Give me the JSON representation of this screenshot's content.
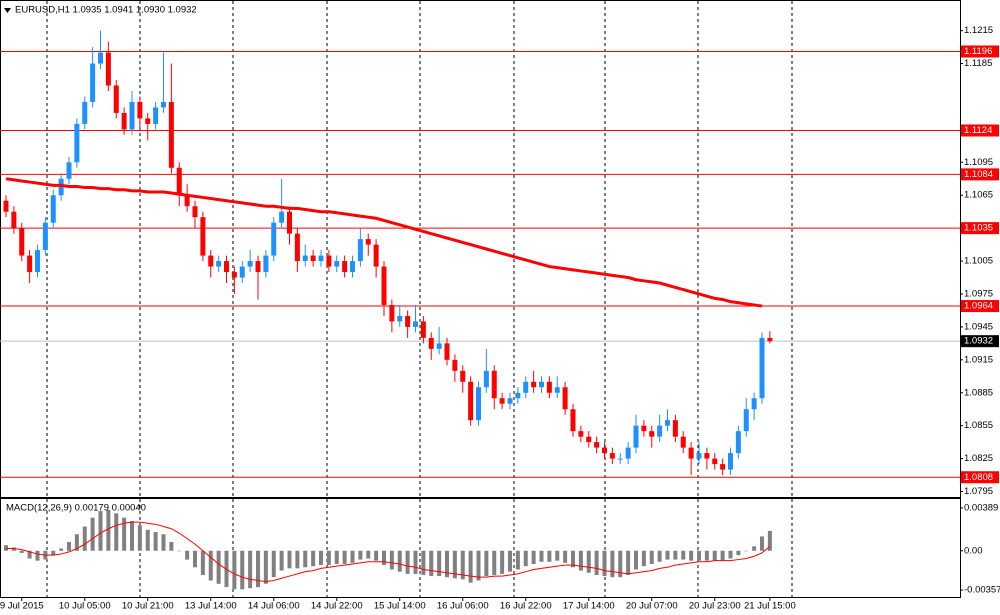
{
  "chart_data": [
    {
      "type": "candlestick",
      "title": "EURUSD,H1  1.0935 1.0941 1.0930 1.0932",
      "categories": [
        null,
        null,
        "9 Jul 2015",
        null,
        null,
        null,
        null,
        null,
        null,
        null,
        "10 Jul 05:00",
        null,
        null,
        null,
        null,
        null,
        null,
        null,
        "10 Jul 21:00",
        null,
        null,
        null,
        null,
        null,
        null,
        null,
        "13 Jul 14:00",
        null,
        null,
        null,
        null,
        null,
        null,
        null,
        "14 Jul 06:00",
        null,
        null,
        null,
        null,
        null,
        null,
        null,
        "14 Jul 22:00",
        null,
        null,
        null,
        null,
        null,
        null,
        null,
        "15 Jul 14:00",
        null,
        null,
        null,
        null,
        null,
        null,
        null,
        "16 Jul 06:00",
        null,
        null,
        null,
        null,
        null,
        null,
        null,
        "16 Jul 22:00",
        null,
        null,
        null,
        null,
        null,
        null,
        null,
        "17 Jul 14:00",
        null,
        null,
        null,
        null,
        null,
        null,
        null,
        "20 Jul 07:00",
        null,
        null,
        null,
        null,
        null,
        null,
        null,
        "20 Jul 23:00",
        null,
        null,
        null,
        null,
        null,
        null,
        "21 Jul 15:00"
      ],
      "open": [
        1.106,
        1.105,
        1.1035,
        1.101,
        1.0995,
        1.1015,
        1.104,
        1.1065,
        1.108,
        1.1095,
        1.113,
        1.115,
        1.1185,
        1.1195,
        1.1165,
        1.114,
        1.1125,
        1.115,
        1.1135,
        1.113,
        1.1145,
        1.115,
        1.109,
        1.1065,
        1.1055,
        1.1045,
        1.101,
        1.1,
        1.1005,
        1.0995,
        1.099,
        1.1,
        1.1005,
        1.0995,
        1.101,
        1.104,
        1.105,
        1.103,
        1.1005,
        1.101,
        1.1005,
        1.101,
        1.1,
        1.1005,
        1.0995,
        1.1005,
        1.1025,
        1.102,
        1.1,
        1.0965,
        1.095,
        1.0955,
        1.0945,
        1.095,
        1.0935,
        1.0925,
        1.093,
        1.0915,
        1.0905,
        1.0895,
        1.086,
        1.089,
        1.0905,
        1.088,
        1.0875,
        1.088,
        1.0885,
        1.0895,
        1.089,
        1.0895,
        1.0885,
        1.089,
        1.087,
        1.085,
        1.0845,
        1.084,
        1.0835,
        1.083,
        1.0825,
        1.0825,
        1.0835,
        1.0855,
        1.085,
        1.0845,
        1.0855,
        1.086,
        1.0845,
        1.0835,
        1.0825,
        1.083,
        1.0825,
        1.082,
        1.0815,
        1.083,
        1.085,
        1.087,
        1.088,
        1.0935
      ],
      "high": [
        1.1065,
        1.1055,
        1.104,
        1.1015,
        1.102,
        1.1045,
        1.107,
        1.1085,
        1.11,
        1.1135,
        1.1155,
        1.12,
        1.1215,
        1.1205,
        1.117,
        1.1145,
        1.116,
        1.1155,
        1.114,
        1.115,
        1.1195,
        1.1185,
        1.1095,
        1.1075,
        1.106,
        1.105,
        1.1015,
        1.101,
        1.101,
        1.1,
        1.1005,
        1.1015,
        1.101,
        1.1015,
        1.1045,
        1.108,
        1.1055,
        1.1035,
        1.102,
        1.1015,
        1.1015,
        1.1015,
        1.101,
        1.101,
        1.101,
        1.1035,
        1.103,
        1.1025,
        1.1005,
        1.097,
        1.0965,
        1.096,
        1.0965,
        1.0955,
        1.094,
        1.0945,
        1.0935,
        1.092,
        1.091,
        1.09,
        1.0895,
        1.0925,
        1.091,
        1.0885,
        1.0885,
        1.089,
        1.09,
        1.0905,
        1.09,
        1.09,
        1.09,
        1.0895,
        1.0875,
        1.0855,
        1.085,
        1.0845,
        1.084,
        1.0835,
        1.083,
        1.084,
        1.0865,
        1.086,
        1.0855,
        1.0865,
        1.087,
        1.0865,
        1.085,
        1.084,
        1.084,
        1.0835,
        1.083,
        1.0825,
        1.0835,
        1.0855,
        1.088,
        1.0885,
        1.094,
        1.0941
      ],
      "low": [
        1.1045,
        1.103,
        1.1005,
        1.0985,
        1.099,
        1.101,
        1.1035,
        1.106,
        1.1075,
        1.109,
        1.1125,
        1.1145,
        1.118,
        1.116,
        1.1135,
        1.112,
        1.112,
        1.1125,
        1.1115,
        1.1125,
        1.114,
        1.1085,
        1.1055,
        1.105,
        1.1035,
        1.1005,
        1.099,
        1.0995,
        1.0985,
        1.0975,
        1.0985,
        1.0995,
        1.097,
        1.099,
        1.1005,
        1.1035,
        1.102,
        1.0995,
        1.1,
        1.1,
        1.1,
        1.0995,
        1.0995,
        1.099,
        1.099,
        1.1,
        1.101,
        1.099,
        1.0955,
        1.094,
        1.0945,
        1.0935,
        1.094,
        1.093,
        1.0915,
        1.092,
        1.091,
        1.0895,
        1.0885,
        1.0855,
        1.0855,
        1.0885,
        1.087,
        1.087,
        1.087,
        1.0875,
        1.088,
        1.0885,
        1.0885,
        1.088,
        1.088,
        1.0865,
        1.0845,
        1.084,
        1.0835,
        1.083,
        1.0825,
        1.082,
        1.082,
        1.082,
        1.083,
        1.0845,
        1.0835,
        1.084,
        1.085,
        1.084,
        1.083,
        1.081,
        1.082,
        1.0815,
        1.0815,
        1.081,
        1.081,
        1.0825,
        1.0845,
        1.086,
        1.0875,
        1.093
      ],
      "close": [
        1.105,
        1.1035,
        1.101,
        1.0995,
        1.1015,
        1.104,
        1.1065,
        1.108,
        1.1095,
        1.113,
        1.115,
        1.1185,
        1.1195,
        1.1165,
        1.114,
        1.1125,
        1.115,
        1.1135,
        1.113,
        1.1145,
        1.115,
        1.109,
        1.1065,
        1.1055,
        1.1045,
        1.101,
        1.1,
        1.1005,
        1.0995,
        1.099,
        1.1,
        1.1005,
        1.0995,
        1.101,
        1.104,
        1.105,
        1.103,
        1.1005,
        1.101,
        1.1005,
        1.101,
        1.1,
        1.1005,
        1.0995,
        1.1005,
        1.1025,
        1.102,
        1.1,
        1.0965,
        1.095,
        1.0955,
        1.0945,
        1.095,
        1.0935,
        1.0925,
        1.093,
        1.0915,
        1.0905,
        1.0895,
        1.086,
        1.089,
        1.0905,
        1.088,
        1.0875,
        1.088,
        1.0885,
        1.0895,
        1.089,
        1.0895,
        1.0885,
        1.089,
        1.087,
        1.085,
        1.0845,
        1.084,
        1.0835,
        1.083,
        1.0825,
        1.0825,
        1.0835,
        1.0855,
        1.085,
        1.0845,
        1.0855,
        1.086,
        1.0845,
        1.0835,
        1.0825,
        1.083,
        1.0825,
        1.082,
        1.0815,
        1.083,
        1.085,
        1.087,
        1.088,
        1.0935,
        1.0932
      ],
      "up_color": "#1e90ff",
      "down_color": "#ff0000",
      "ma": {
        "color": "#ff0000",
        "values": [
          1.108,
          1.1079,
          1.1078,
          1.1077,
          1.1076,
          1.1075,
          1.1074,
          1.1074,
          1.1073,
          1.1073,
          1.1072,
          1.1072,
          1.1071,
          1.1071,
          1.107,
          1.107,
          1.1069,
          1.1069,
          1.1068,
          1.1068,
          1.1068,
          1.1067,
          1.1066,
          1.1065,
          1.1064,
          1.1063,
          1.1062,
          1.1061,
          1.106,
          1.1059,
          1.1058,
          1.1057,
          1.1056,
          1.1055,
          1.1055,
          1.1054,
          1.1053,
          1.1053,
          1.1052,
          1.1051,
          1.105,
          1.105,
          1.1049,
          1.1048,
          1.1047,
          1.1046,
          1.1045,
          1.1044,
          1.1042,
          1.104,
          1.1038,
          1.1036,
          1.1034,
          1.1032,
          1.103,
          1.1028,
          1.1026,
          1.1024,
          1.1022,
          1.102,
          1.1018,
          1.1016,
          1.1014,
          1.1012,
          1.101,
          1.1008,
          1.1006,
          1.1004,
          1.1002,
          1.1,
          1.0999,
          1.0998,
          1.0997,
          1.0996,
          1.0995,
          1.0994,
          1.0993,
          1.0992,
          1.0991,
          1.099,
          1.0988,
          1.0987,
          1.0986,
          1.0985,
          1.0983,
          1.0981,
          1.0979,
          1.0977,
          1.0975,
          1.0973,
          1.0971,
          1.097,
          1.0968,
          1.0967,
          1.0966,
          1.0965,
          1.0964,
          null
        ]
      },
      "levels": {
        "color": "#ff0000",
        "values": [
          1.1196,
          1.1124,
          1.1084,
          1.1035,
          1.0964,
          1.0808
        ]
      },
      "bid": {
        "value": 1.0932,
        "color": "#c0c0c0"
      },
      "ylim": [
        1.079,
        1.1242
      ],
      "yticks": [
        1.1215,
        1.1185,
        1.1095,
        1.1065,
        1.1005,
        1.0975,
        1.0945,
        1.0915,
        1.0885,
        1.0855,
        1.0825,
        1.0795
      ]
    },
    {
      "type": "macd",
      "title": "MACD(12,26,9) 0.00179 0.00040",
      "color": "#808080",
      "values": [
        0.0005,
        0.0003,
        -0.0002,
        -0.0007,
        -0.0009,
        -0.0008,
        -0.0004,
        0.0002,
        0.0008,
        0.0015,
        0.0022,
        0.003,
        0.0036,
        0.0037,
        0.0034,
        0.003,
        0.0027,
        0.0023,
        0.0019,
        0.0017,
        0.0015,
        0.0008,
        0.0,
        -0.0008,
        -0.0015,
        -0.0022,
        -0.0027,
        -0.003,
        -0.0033,
        -0.0035,
        -0.0035,
        -0.0034,
        -0.0033,
        -0.003,
        -0.0024,
        -0.0018,
        -0.0016,
        -0.0016,
        -0.0015,
        -0.0014,
        -0.0013,
        -0.0013,
        -0.0012,
        -0.0012,
        -0.0011,
        -0.0008,
        -0.0007,
        -0.0009,
        -0.0013,
        -0.0017,
        -0.0019,
        -0.0021,
        -0.0021,
        -0.0022,
        -0.0023,
        -0.0023,
        -0.0024,
        -0.0025,
        -0.0026,
        -0.0029,
        -0.0027,
        -0.0023,
        -0.0022,
        -0.0021,
        -0.0019,
        -0.0017,
        -0.0014,
        -0.0012,
        -0.001,
        -0.001,
        -0.0009,
        -0.0011,
        -0.0015,
        -0.0018,
        -0.002,
        -0.0022,
        -0.0023,
        -0.0024,
        -0.0024,
        -0.0022,
        -0.0017,
        -0.0014,
        -0.0012,
        -0.001,
        -0.0008,
        -0.0008,
        -0.0008,
        -0.0009,
        -0.0009,
        -0.0009,
        -0.0009,
        -0.0009,
        -0.0007,
        -0.0004,
        0.0,
        0.0004,
        0.0013,
        0.0018
      ],
      "signal": {
        "color": "#ff0000",
        "values": [
          0.0002,
          0.0002,
          0.0001,
          -0.0001,
          -0.0003,
          -0.0004,
          -0.0004,
          -0.0003,
          -0.0001,
          0.0002,
          0.0006,
          0.0011,
          0.0016,
          0.002,
          0.0023,
          0.0025,
          0.0026,
          0.0026,
          0.0025,
          0.0024,
          0.0022,
          0.002,
          0.0016,
          0.0011,
          0.0006,
          0.0,
          -0.0006,
          -0.0012,
          -0.0017,
          -0.0021,
          -0.0024,
          -0.0026,
          -0.0027,
          -0.0028,
          -0.0027,
          -0.0025,
          -0.0023,
          -0.0021,
          -0.0019,
          -0.0018,
          -0.0016,
          -0.0015,
          -0.0014,
          -0.0013,
          -0.0012,
          -0.0011,
          -0.001,
          -0.001,
          -0.001,
          -0.0011,
          -0.0012,
          -0.0014,
          -0.0015,
          -0.0017,
          -0.0018,
          -0.0019,
          -0.002,
          -0.0021,
          -0.0022,
          -0.0023,
          -0.0024,
          -0.0024,
          -0.0023,
          -0.0023,
          -0.0022,
          -0.0021,
          -0.0019,
          -0.0017,
          -0.0016,
          -0.0015,
          -0.0014,
          -0.0013,
          -0.0013,
          -0.0014,
          -0.0015,
          -0.0016,
          -0.0018,
          -0.0019,
          -0.002,
          -0.0021,
          -0.002,
          -0.0019,
          -0.0018,
          -0.0016,
          -0.0015,
          -0.0013,
          -0.0012,
          -0.0011,
          -0.001,
          -0.001,
          -0.0009,
          -0.0009,
          -0.0009,
          -0.0008,
          -0.0007,
          -0.0005,
          -0.0002,
          0.0004
        ]
      },
      "ylim": [
        -0.0042,
        0.0047
      ],
      "yticks": [
        0.00389,
        {
          "value": 0,
          "label": "0.00"
        },
        -0.00357
      ]
    }
  ]
}
